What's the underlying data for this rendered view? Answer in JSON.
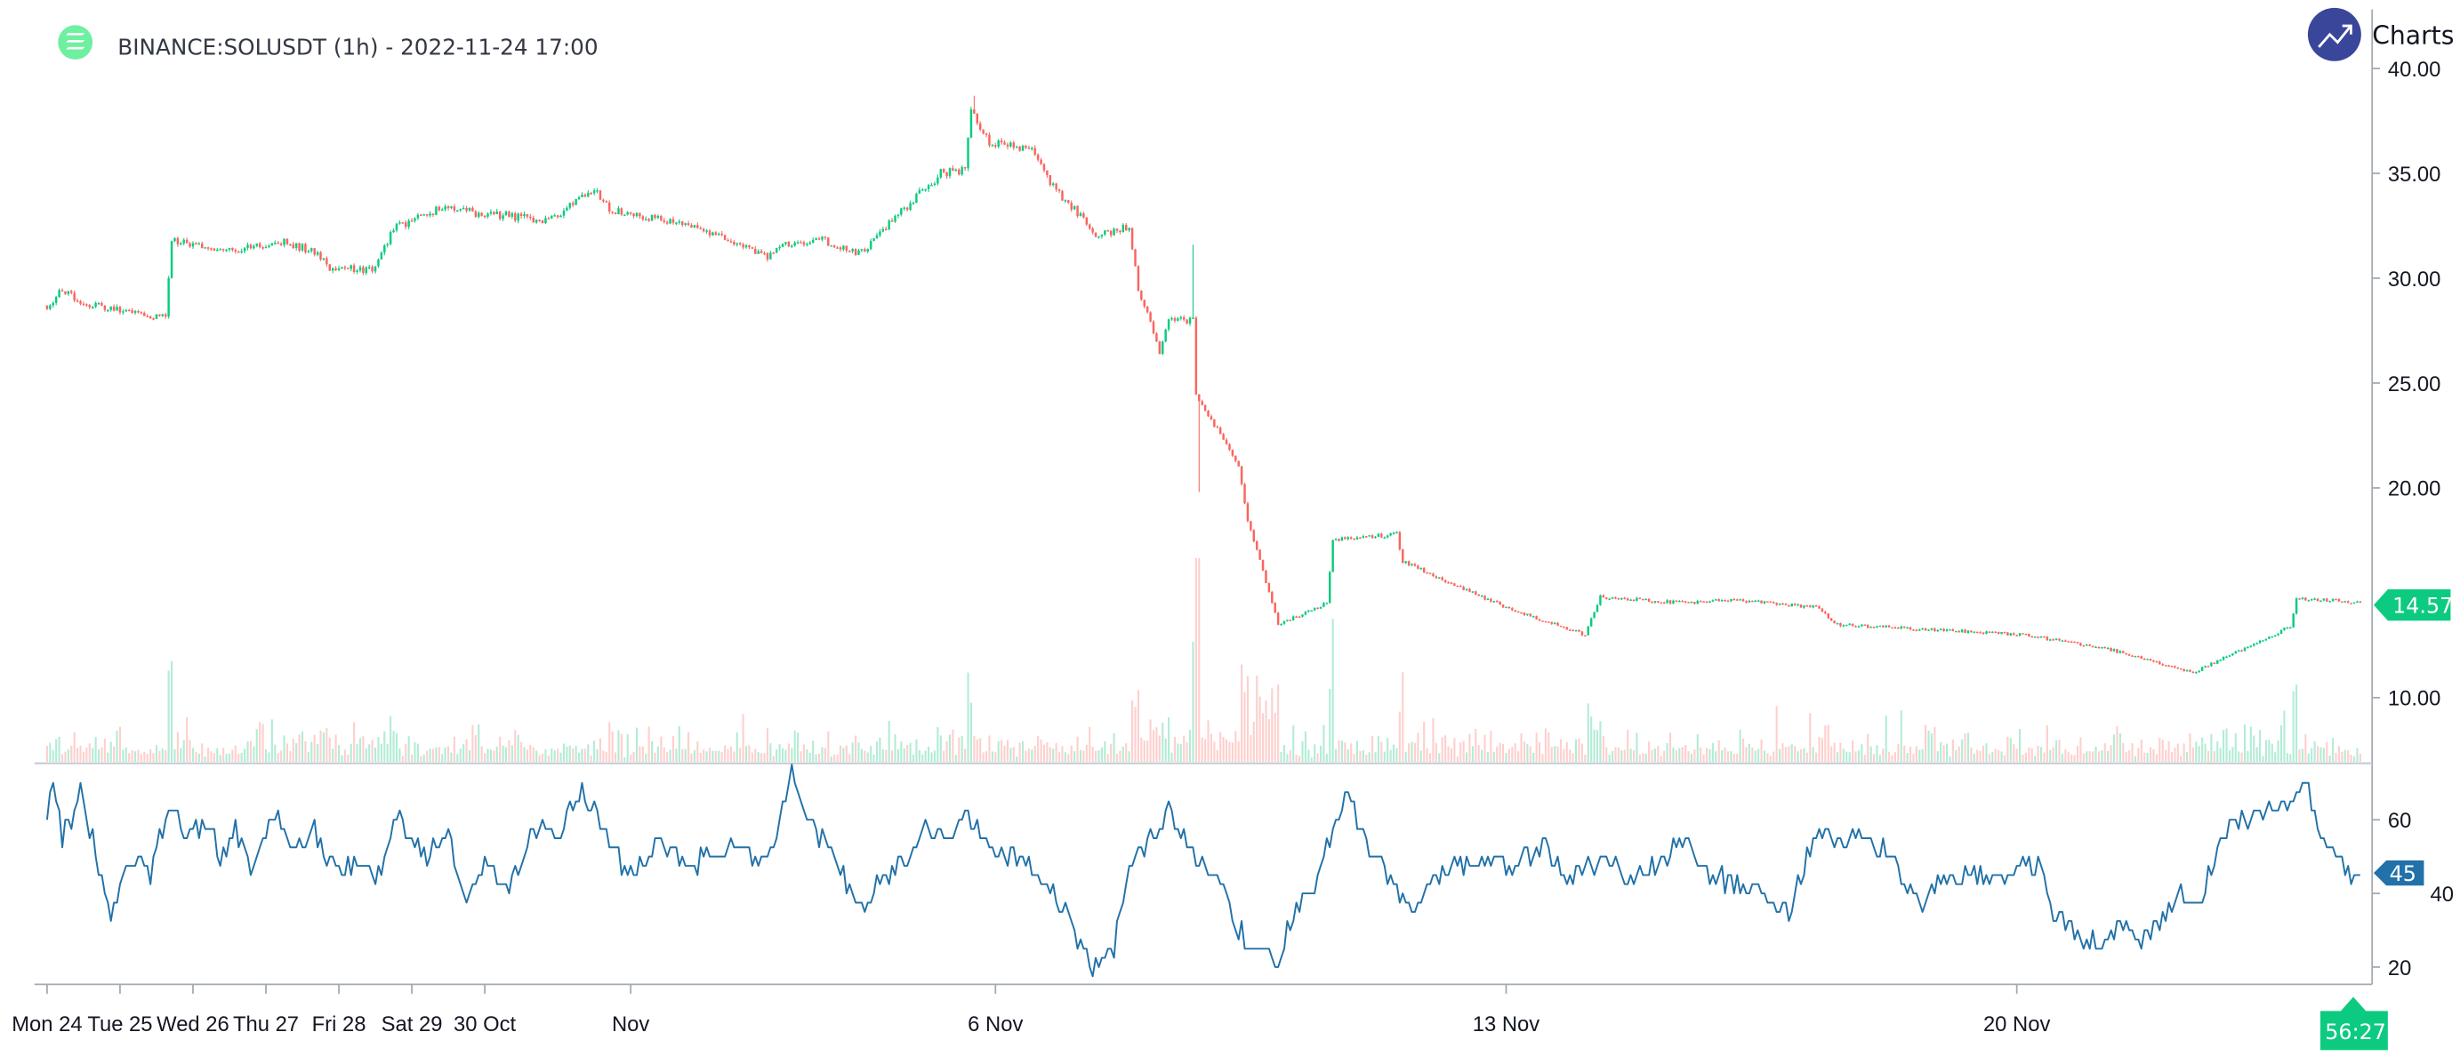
{
  "header": {
    "symbol_icon": "solana-logo-icon",
    "title": "BINANCE:SOLUSDT (1h) - 2022-11-24 17:00",
    "brand_icon": "trending-up-icon",
    "brand_text": "Charts p"
  },
  "colors": {
    "up": "#0ccb80",
    "down": "#f9665e",
    "volume_up": "#b3ecd6",
    "volume_down": "#fdd0cd",
    "rsi": "#2271a8",
    "axis": "#a3a9b1",
    "logo": "#6ef0a0",
    "brand": "#3a469a"
  },
  "chart_data": [
    {
      "type": "candlestick",
      "interval": "1h",
      "price_axis": {
        "ticks": [
          "40.00",
          "35.00",
          "30.00",
          "25.00",
          "20.00",
          "10.00"
        ],
        "range": [
          7,
          41
        ]
      },
      "last_price": "14.57",
      "countdown": "56:27",
      "time_axis": [
        {
          "label": "Mon 24",
          "date": "2022-10-24 00:00"
        },
        {
          "label": "Tue 25",
          "date": "2022-10-25 00:00"
        },
        {
          "label": "Wed 26",
          "date": "2022-10-26 00:00"
        },
        {
          "label": "Thu 27",
          "date": "2022-10-27 00:00"
        },
        {
          "label": "Fri 28",
          "date": "2022-10-28 00:00"
        },
        {
          "label": "Sat 29",
          "date": "2022-10-29 00:00"
        },
        {
          "label": "30 Oct",
          "date": "2022-10-30 00:00"
        },
        {
          "label": "Nov",
          "date": "2022-11-01 00:00"
        },
        {
          "label": "6 Nov",
          "date": "2022-11-06 00:00"
        },
        {
          "label": "13 Nov",
          "date": "2022-11-13 00:00"
        },
        {
          "label": "20 Nov",
          "date": "2022-11-20 00:00"
        }
      ],
      "close_path": [
        [
          "2022-10-24 00:00",
          28.7
        ],
        [
          "2022-10-24 05:00",
          29.4
        ],
        [
          "2022-10-24 12:00",
          28.8
        ],
        [
          "2022-10-25 12:00",
          28.2
        ],
        [
          "2022-10-25 15:00",
          28.3
        ],
        [
          "2022-10-25 17:00",
          31.8
        ],
        [
          "2022-10-26 14:00",
          31.3
        ],
        [
          "2022-10-27 06:00",
          31.8
        ],
        [
          "2022-10-27 16:00",
          31.2
        ],
        [
          "2022-10-27 21:00",
          30.5
        ],
        [
          "2022-10-28 12:00",
          30.4
        ],
        [
          "2022-10-28 18:00",
          32.4
        ],
        [
          "2022-10-29 09:00",
          33.3
        ],
        [
          "2022-10-30 06:00",
          33.0
        ],
        [
          "2022-10-30 21:00",
          32.7
        ],
        [
          "2022-10-31 12:00",
          34.2
        ],
        [
          "2022-10-31 18:00",
          33.2
        ],
        [
          "2022-11-01 20:00",
          32.6
        ],
        [
          "2022-11-02 21:00",
          31.0
        ],
        [
          "2022-11-03 03:00",
          31.6
        ],
        [
          "2022-11-03 15:00",
          31.8
        ],
        [
          "2022-11-04 04:00",
          31.2
        ],
        [
          "2022-11-04 09:00",
          32.0
        ],
        [
          "2022-11-05 06:00",
          35.0
        ],
        [
          "2022-11-05 14:00",
          35.2
        ],
        [
          "2022-11-05 16:00",
          38.0
        ],
        [
          "2022-11-05 22:00",
          36.5
        ],
        [
          "2022-11-06 13:00",
          36.0
        ],
        [
          "2022-11-06 18:00",
          34.5
        ],
        [
          "2022-11-07 10:00",
          32.0
        ],
        [
          "2022-11-07 20:00",
          32.5
        ],
        [
          "2022-11-07 23:00",
          29.5
        ],
        [
          "2022-11-08 06:00",
          26.5
        ],
        [
          "2022-11-08 09:00",
          28.0
        ],
        [
          "2022-11-08 17:00",
          28.0
        ],
        [
          "2022-11-08 18:00",
          24.5
        ],
        [
          "2022-11-09 08:00",
          21.0
        ],
        [
          "2022-11-09 11:00",
          18.5
        ],
        [
          "2022-11-09 18:00",
          15.0
        ],
        [
          "2022-11-09 21:00",
          13.5
        ],
        [
          "2022-11-10 13:00",
          14.5
        ],
        [
          "2022-11-10 15:00",
          17.5
        ],
        [
          "2022-11-11 12:00",
          17.8
        ],
        [
          "2022-11-11 14:00",
          16.5
        ],
        [
          "2022-11-13 00:00",
          14.3
        ],
        [
          "2022-11-14 02:00",
          13.0
        ],
        [
          "2022-11-14 07:00",
          14.8
        ],
        [
          "2022-11-15 12:00",
          14.5
        ],
        [
          "2022-11-16 00:00",
          14.7
        ],
        [
          "2022-11-17 07:00",
          14.3
        ],
        [
          "2022-11-17 12:00",
          13.5
        ],
        [
          "2022-11-20 02:00",
          13.0
        ],
        [
          "2022-11-21 04:00",
          12.4
        ],
        [
          "2022-11-22 10:00",
          11.2
        ],
        [
          "2022-11-23 18:00",
          13.4
        ],
        [
          "2022-11-23 20:00",
          14.7
        ],
        [
          "2022-11-24 17:00",
          14.57
        ]
      ],
      "wick_extremes": [
        {
          "date": "2022-11-05 17:00",
          "high": 38.7
        },
        {
          "date": "2022-11-08 17:00",
          "high": 31.6
        },
        {
          "date": "2022-11-08 19:00",
          "low": 19.8
        }
      ]
    },
    {
      "type": "line",
      "indicator": "RSI",
      "axis": {
        "ticks": [
          "60",
          "40",
          "20"
        ],
        "range": [
          16,
          76
        ]
      },
      "last_value": "45",
      "points": [
        [
          "2022-10-24 00:00",
          60
        ],
        [
          "2022-10-24 02:00",
          70
        ],
        [
          "2022-10-24 05:00",
          55
        ],
        [
          "2022-10-24 11:00",
          67
        ],
        [
          "2022-10-24 18:00",
          45
        ],
        [
          "2022-10-24 21:00",
          35
        ],
        [
          "2022-10-25 04:00",
          50
        ],
        [
          "2022-10-25 10:00",
          45
        ],
        [
          "2022-10-25 17:00",
          65
        ],
        [
          "2022-10-25 22:00",
          55
        ],
        [
          "2022-10-26 04:00",
          60
        ],
        [
          "2022-10-26 09:00",
          50
        ],
        [
          "2022-10-26 14:00",
          57
        ],
        [
          "2022-10-26 19:00",
          48
        ],
        [
          "2022-10-27 03:00",
          60
        ],
        [
          "2022-10-27 11:00",
          52
        ],
        [
          "2022-10-27 16:00",
          58
        ],
        [
          "2022-10-27 23:00",
          45
        ],
        [
          "2022-10-28 05:00",
          48
        ],
        [
          "2022-10-28 12:00",
          45
        ],
        [
          "2022-10-28 20:00",
          60
        ],
        [
          "2022-10-29 04:00",
          50
        ],
        [
          "2022-10-29 12:00",
          55
        ],
        [
          "2022-10-29 18:00",
          38
        ],
        [
          "2022-10-30 00:00",
          48
        ],
        [
          "2022-10-30 08:00",
          40
        ],
        [
          "2022-10-30 16:00",
          58
        ],
        [
          "2022-10-31 00:00",
          55
        ],
        [
          "2022-10-31 07:00",
          68
        ],
        [
          "2022-10-31 15:00",
          58
        ],
        [
          "2022-10-31 23:00",
          45
        ],
        [
          "2022-11-01 09:00",
          53
        ],
        [
          "2022-11-01 20:00",
          48
        ],
        [
          "2022-11-02 06:00",
          52
        ],
        [
          "2022-11-02 21:00",
          48
        ],
        [
          "2022-11-03 05:00",
          72
        ],
        [
          "2022-11-03 13:00",
          55
        ],
        [
          "2022-11-03 18:00",
          55
        ],
        [
          "2022-11-04 02:00",
          35
        ],
        [
          "2022-11-04 09:00",
          42
        ],
        [
          "2022-11-04 17:00",
          48
        ],
        [
          "2022-11-05 01:00",
          58
        ],
        [
          "2022-11-05 06:00",
          55
        ],
        [
          "2022-11-05 16:00",
          60
        ],
        [
          "2022-11-06 00:00",
          52
        ],
        [
          "2022-11-06 13:00",
          48
        ],
        [
          "2022-11-06 23:00",
          35
        ],
        [
          "2022-11-07 07:00",
          20
        ],
        [
          "2022-11-07 15:00",
          25
        ],
        [
          "2022-11-07 20:00",
          48
        ],
        [
          "2022-11-08 09:00",
          62
        ],
        [
          "2022-11-08 17:00",
          50
        ],
        [
          "2022-11-09 00:00",
          45
        ],
        [
          "2022-11-09 08:00",
          30
        ],
        [
          "2022-11-09 13:00",
          25
        ],
        [
          "2022-11-09 21:00",
          20
        ],
        [
          "2022-11-10 02:00",
          35
        ],
        [
          "2022-11-10 10:00",
          45
        ],
        [
          "2022-11-10 15:00",
          58
        ],
        [
          "2022-11-10 20:00",
          68
        ],
        [
          "2022-11-11 01:00",
          55
        ],
        [
          "2022-11-11 09:00",
          45
        ],
        [
          "2022-11-11 17:00",
          35
        ],
        [
          "2022-11-11 22:00",
          42
        ],
        [
          "2022-11-12 06:00",
          48
        ],
        [
          "2022-11-13 00:00",
          48
        ],
        [
          "2022-11-13 13:00",
          52
        ],
        [
          "2022-11-13 21:00",
          45
        ],
        [
          "2022-11-14 07:00",
          48
        ],
        [
          "2022-11-14 17:00",
          45
        ],
        [
          "2022-11-15 03:00",
          48
        ],
        [
          "2022-11-15 11:00",
          55
        ],
        [
          "2022-11-15 19:00",
          45
        ],
        [
          "2022-11-16 10:00",
          40
        ],
        [
          "2022-11-16 21:00",
          35
        ],
        [
          "2022-11-17 07:00",
          58
        ],
        [
          "2022-11-17 12:00",
          52
        ],
        [
          "2022-11-17 23:00",
          55
        ],
        [
          "2022-11-18 09:00",
          48
        ],
        [
          "2022-11-18 17:00",
          35
        ],
        [
          "2022-11-19 00:00",
          45
        ],
        [
          "2022-11-19 16:00",
          45
        ],
        [
          "2022-11-20 07:00",
          48
        ],
        [
          "2022-11-20 12:00",
          35
        ],
        [
          "2022-11-20 18:00",
          30
        ],
        [
          "2022-11-21 04:00",
          25
        ],
        [
          "2022-11-21 09:00",
          30
        ],
        [
          "2022-11-21 19:00",
          28
        ],
        [
          "2022-11-22 06:00",
          40
        ],
        [
          "2022-11-22 11:00",
          35
        ],
        [
          "2022-11-22 21:00",
          58
        ],
        [
          "2022-11-23 08:00",
          62
        ],
        [
          "2022-11-23 18:00",
          65
        ],
        [
          "2022-11-23 23:00",
          70
        ],
        [
          "2022-11-24 04:00",
          55
        ],
        [
          "2022-11-24 09:00",
          50
        ],
        [
          "2022-11-24 15:00",
          45
        ],
        [
          "2022-11-24 17:00",
          45
        ]
      ]
    }
  ]
}
